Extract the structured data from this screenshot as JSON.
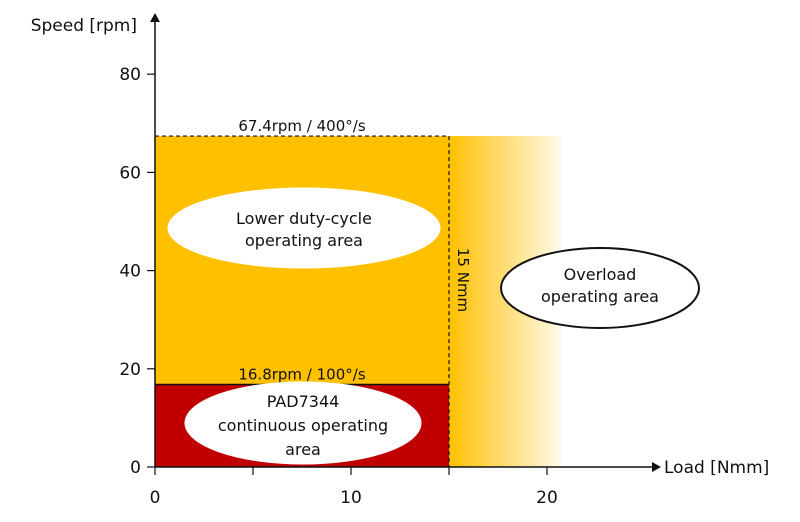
{
  "chart_data": {
    "type": "area",
    "title": "",
    "xlabel": "Load [Nmm]",
    "ylabel": "Speed [rpm]",
    "xlim": [
      0,
      20
    ],
    "ylim": [
      0,
      80
    ],
    "x_ticks": [
      "0",
      "10",
      "20"
    ],
    "y_ticks": [
      "0",
      "20",
      "40",
      "60",
      "80"
    ],
    "grid": false,
    "regions": [
      {
        "name": "Continuous operating area",
        "label_lines": [
          "PAD7344",
          "continuous operating",
          "area"
        ],
        "x_range": [
          0,
          15
        ],
        "y_range": [
          0,
          16.8
        ],
        "color": "#C00000"
      },
      {
        "name": "Lower duty-cycle operating area",
        "label_lines": [
          "Lower duty-cycle",
          "operating area"
        ],
        "x_range": [
          0,
          15
        ],
        "y_range": [
          16.8,
          67.4
        ],
        "color": "#FFC000"
      },
      {
        "name": "Overload operating area",
        "label_lines": [
          "Overload",
          "operating area"
        ],
        "x_range": [
          15,
          20.7
        ],
        "y_range": [
          0,
          67.4
        ],
        "color": "#FFC000",
        "fill": "gradient-fade"
      }
    ],
    "annotations": {
      "top_speed": {
        "text": "67.4rpm / 400°/s",
        "y": 67.4
      },
      "continuous_speed": {
        "text": "16.8rpm / 100°/s",
        "y": 16.8
      },
      "torque_limit": {
        "text": "15 Nmm",
        "x": 15
      }
    }
  }
}
